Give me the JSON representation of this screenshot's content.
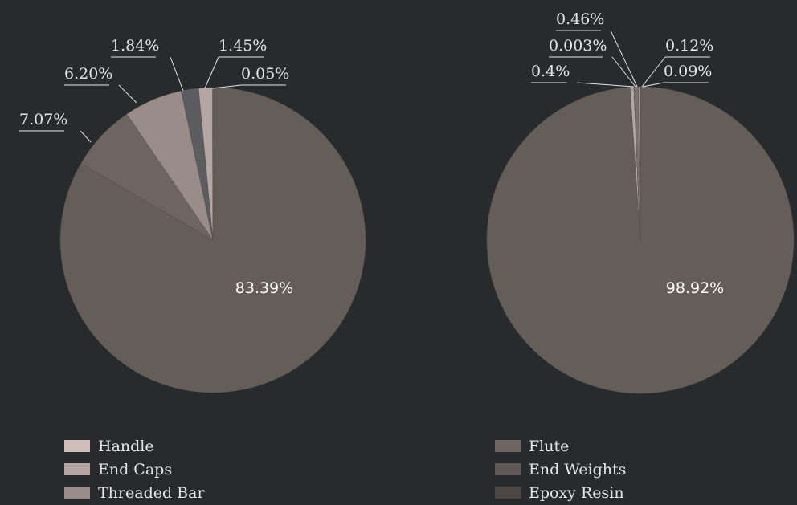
{
  "chart_data": [
    {
      "type": "pie",
      "start_angle_deg": 0,
      "values": [
        83.39,
        7.07,
        6.2,
        1.84,
        1.45,
        0.05
      ],
      "labels": [
        "83.39%",
        "7.07%",
        "6.20%",
        "1.84%",
        "1.45%",
        "0.05%"
      ],
      "colors": [
        "#655d58",
        "#6e6560",
        "#9a8d89",
        "#5b5d61",
        "#b5a6a3",
        "#d1bdb8"
      ]
    },
    {
      "type": "pie",
      "start_angle_deg": 0,
      "values": [
        98.92,
        0.4,
        0.003,
        0.46,
        0.12,
        0.09
      ],
      "labels": [
        "98.92%",
        "0.4%",
        "0.003%",
        "0.46%",
        "0.12%",
        "0.09%"
      ],
      "colors": [
        "#655d58",
        "#b5a6a3",
        "#c9b7b3",
        "#7e7270",
        "#d8c6c2",
        "#a3948f"
      ]
    }
  ],
  "legend": {
    "left": [
      {
        "label": "Handle",
        "color": "#d1bdb8"
      },
      {
        "label": "End Caps",
        "color": "#b5a6a3"
      },
      {
        "label": "Threaded Bar",
        "color": "#9a8d89"
      }
    ],
    "right": [
      {
        "label": "Flute",
        "color": "#6f6561"
      },
      {
        "label": "End Weights",
        "color": "#5f5854"
      },
      {
        "label": "Epoxy Resin",
        "color": "#4d4744"
      }
    ]
  }
}
